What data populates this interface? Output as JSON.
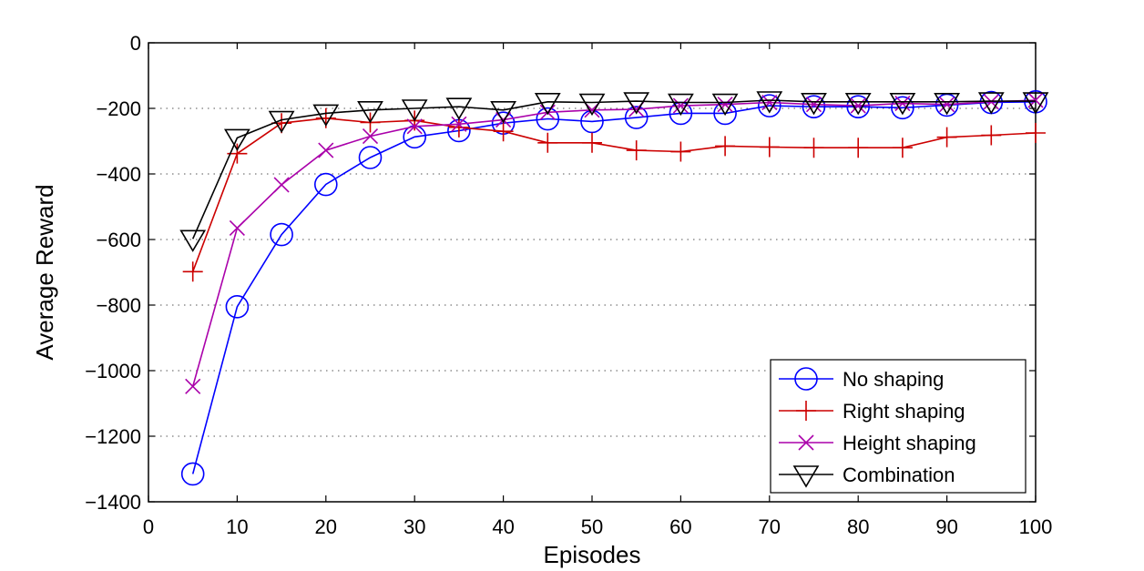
{
  "chart_data": {
    "type": "line",
    "title": "",
    "xlabel": "Episodes",
    "ylabel": "Average Reward",
    "xlim": [
      0,
      100
    ],
    "ylim": [
      -1400,
      0
    ],
    "xticks": [
      0,
      10,
      20,
      30,
      40,
      50,
      60,
      70,
      80,
      90,
      100
    ],
    "yticks": [
      0,
      -200,
      -400,
      -600,
      -800,
      -1000,
      -1200,
      -1400
    ],
    "xtick_labels": [
      "0",
      "10",
      "20",
      "30",
      "40",
      "50",
      "60",
      "70",
      "80",
      "90",
      "100"
    ],
    "ytick_labels": [
      "0",
      "−200",
      "−400",
      "−600",
      "−800",
      "−1000",
      "−1200",
      "−1400"
    ],
    "grid": "horizontal dotted",
    "legend_position": "bottom-right",
    "x": [
      5,
      10,
      15,
      20,
      25,
      30,
      35,
      40,
      45,
      50,
      55,
      60,
      65,
      70,
      75,
      80,
      85,
      90,
      95,
      100
    ],
    "series": [
      {
        "name": "No shaping",
        "color": "#0000ff",
        "marker": "circle",
        "values": [
          -1315,
          -805,
          -585,
          -432,
          -350,
          -287,
          -268,
          -245,
          -232,
          -240,
          -228,
          -215,
          -215,
          -192,
          -195,
          -195,
          -198,
          -190,
          -182,
          -180
        ]
      },
      {
        "name": "Right shaping",
        "color": "#cc0000",
        "marker": "plus",
        "values": [
          -698,
          -338,
          -245,
          -230,
          -243,
          -237,
          -258,
          -270,
          -305,
          -305,
          -328,
          -332,
          -315,
          -318,
          -320,
          -320,
          -320,
          -288,
          -282,
          -275
        ]
      },
      {
        "name": "Height shaping",
        "color": "#aa00aa",
        "marker": "x",
        "values": [
          -1048,
          -565,
          -433,
          -328,
          -285,
          -255,
          -248,
          -235,
          -212,
          -205,
          -203,
          -192,
          -188,
          -182,
          -188,
          -192,
          -185,
          -188,
          -180,
          -175
        ]
      },
      {
        "name": "Combination",
        "color": "#000000",
        "marker": "triangle-down",
        "values": [
          -598,
          -290,
          -235,
          -215,
          -205,
          -200,
          -195,
          -205,
          -180,
          -182,
          -178,
          -182,
          -182,
          -175,
          -180,
          -180,
          -180,
          -180,
          -178,
          -178
        ]
      }
    ]
  }
}
